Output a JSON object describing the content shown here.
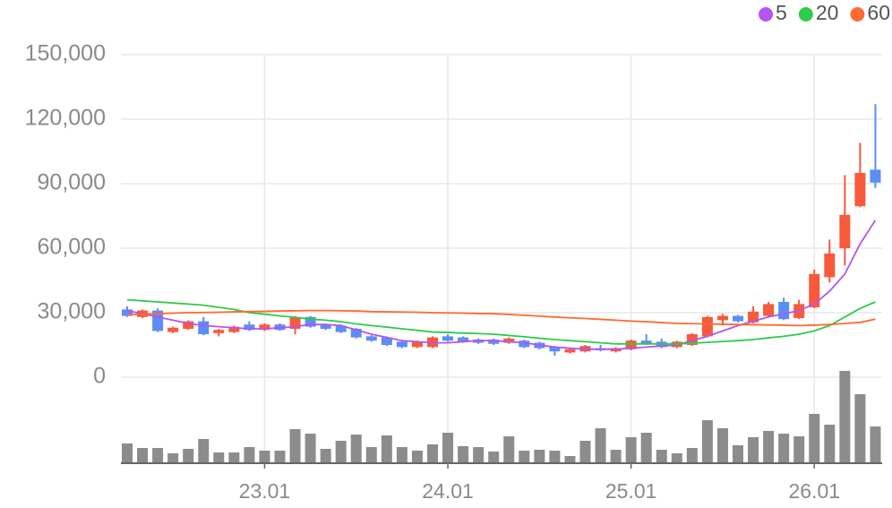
{
  "chart_data": {
    "type": "candlestick",
    "categories": [
      null,
      null,
      null,
      null,
      null,
      null,
      null,
      null,
      null,
      "23.01",
      null,
      null,
      null,
      null,
      null,
      null,
      null,
      null,
      null,
      null,
      null,
      "24.01",
      null,
      null,
      null,
      null,
      null,
      null,
      null,
      null,
      null,
      null,
      null,
      "25.01",
      null,
      null,
      null,
      null,
      null,
      null,
      null,
      null,
      null,
      null,
      null,
      "26.01",
      null,
      null,
      null,
      null
    ],
    "open": [
      31500,
      28000,
      31000,
      21000,
      22500,
      26000,
      20500,
      21000,
      24500,
      22000,
      24500,
      22500,
      28000,
      24500,
      24000,
      22500,
      19000,
      18500,
      16500,
      14000,
      14000,
      19000,
      18500,
      17500,
      17500,
      16000,
      17000,
      16000,
      14000,
      11500,
      12000,
      13500,
      12000,
      13000,
      17000,
      16500,
      14000,
      15000,
      19000,
      26500,
      28500,
      25500,
      28500,
      35000,
      27500,
      32500,
      46500,
      60000,
      79500,
      96500
    ],
    "high": [
      33000,
      31500,
      32000,
      23500,
      26500,
      28000,
      22500,
      24000,
      26000,
      25000,
      25000,
      28500,
      28500,
      25000,
      24500,
      23000,
      19500,
      19000,
      17000,
      17000,
      19000,
      20000,
      19000,
      18000,
      18000,
      18500,
      17500,
      16500,
      14500,
      13500,
      15000,
      15000,
      14000,
      17500,
      20000,
      18000,
      17000,
      20500,
      28500,
      29500,
      29000,
      33000,
      35000,
      37000,
      36000,
      50000,
      64000,
      94000,
      109000,
      127000
    ],
    "low": [
      28000,
      27500,
      21000,
      20500,
      22000,
      19500,
      19000,
      20500,
      21500,
      21500,
      21500,
      20000,
      23000,
      22000,
      20500,
      18000,
      16500,
      14500,
      13500,
      13500,
      13500,
      16500,
      16000,
      15500,
      15000,
      15500,
      13500,
      13000,
      10000,
      11000,
      11500,
      12000,
      11500,
      12500,
      15000,
      13500,
      13500,
      14500,
      18500,
      24000,
      25500,
      25000,
      28000,
      26500,
      27000,
      32000,
      44000,
      52000,
      79000,
      88000
    ],
    "close": [
      28500,
      31000,
      21500,
      23000,
      26000,
      20000,
      22000,
      23500,
      22000,
      24500,
      22000,
      28000,
      23500,
      22500,
      21000,
      18500,
      17000,
      15000,
      14000,
      16500,
      18500,
      17000,
      16500,
      16000,
      15500,
      18000,
      14000,
      13500,
      12000,
      13000,
      14500,
      12500,
      13500,
      17000,
      15500,
      14000,
      16500,
      20000,
      28000,
      28500,
      26000,
      30500,
      34000,
      27000,
      34000,
      48000,
      57500,
      75500,
      95000,
      90500
    ],
    "up_color": "#f85a3c",
    "down_color": "#5b8ef5",
    "volume": [
      22,
      17,
      17,
      11,
      16,
      27,
      12,
      12,
      18,
      14,
      14,
      38,
      33,
      16,
      25,
      32,
      18,
      31,
      18,
      14,
      21,
      34,
      19,
      18,
      13,
      30,
      14,
      15,
      14,
      8,
      25,
      39,
      15,
      29,
      34,
      15,
      11,
      17,
      48,
      39,
      20,
      29,
      36,
      33,
      30,
      55,
      43,
      103,
      77,
      41
    ],
    "volume_ylim": [
      0,
      104
    ],
    "volume_color": "#8c8c8c",
    "series": [
      {
        "name": "5",
        "color": "#b455f0",
        "values": [
          31000,
          29500,
          28000,
          26500,
          25000,
          24000,
          23500,
          23000,
          22500,
          22500,
          23000,
          23500,
          24500,
          24500,
          24000,
          22000,
          20000,
          18500,
          17000,
          16500,
          16000,
          16000,
          16500,
          17000,
          17000,
          16500,
          16000,
          15000,
          14000,
          13500,
          13000,
          13000,
          13000,
          13500,
          14000,
          14500,
          15000,
          17000,
          19000,
          21500,
          24000,
          26000,
          28000,
          29500,
          31000,
          34000,
          40000,
          48000,
          62000,
          73000
        ]
      },
      {
        "name": "20",
        "color": "#2ecc4a",
        "values": [
          36000,
          35500,
          35000,
          34500,
          34000,
          33500,
          32500,
          31500,
          30000,
          29300,
          28500,
          27800,
          27000,
          26500,
          25800,
          24800,
          24000,
          23300,
          22500,
          21800,
          21000,
          20800,
          20500,
          20300,
          20000,
          19400,
          18800,
          18100,
          17500,
          17000,
          16500,
          16000,
          15500,
          15500,
          15500,
          15500,
          15500,
          15800,
          16200,
          16600,
          17000,
          17500,
          18300,
          19000,
          20000,
          21500,
          24000,
          28000,
          32000,
          35000
        ]
      },
      {
        "name": "60",
        "color": "#ff6a33",
        "values": [
          29000,
          29300,
          29500,
          29800,
          30000,
          30100,
          30200,
          30400,
          30500,
          30600,
          30800,
          30900,
          31000,
          31000,
          30900,
          30800,
          30500,
          30400,
          30300,
          30200,
          30000,
          29900,
          29800,
          29600,
          29500,
          29200,
          28800,
          28400,
          28000,
          27600,
          27300,
          26900,
          26500,
          26100,
          25800,
          25400,
          25000,
          24900,
          24800,
          24600,
          24500,
          24400,
          24300,
          24200,
          24000,
          24200,
          24500,
          25000,
          25500,
          27000
        ]
      }
    ],
    "ylim": [
      0,
      150000
    ],
    "yticks": [
      0,
      {
        "value": 30000,
        "label": "30,000"
      },
      {
        "value": 60000,
        "label": "60,000"
      },
      {
        "value": 90000,
        "label": "90,000"
      },
      {
        "value": 120000,
        "label": "120,000"
      },
      {
        "value": 150000,
        "label": "150,000"
      }
    ],
    "grid": true
  }
}
